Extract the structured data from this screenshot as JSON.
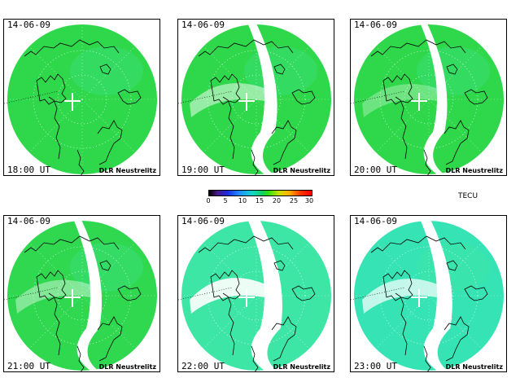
{
  "panels": [
    {
      "date": "14-06-09",
      "time": "18:00 UT",
      "credit": "DLR Neustrelitz",
      "fill": "#2fd84a",
      "hole": 0.0
    },
    {
      "date": "14-06-09",
      "time": "19:00 UT",
      "credit": "DLR Neustrelitz",
      "fill": "#2fd84a",
      "hole": 0.25
    },
    {
      "date": "14-06-09",
      "time": "20:00 UT",
      "credit": "DLR Neustrelitz",
      "fill": "#2fd84a",
      "hole": 0.15
    },
    {
      "date": "14-06-09",
      "time": "21:00 UT",
      "credit": "DLR Neustrelitz",
      "fill": "#30d850",
      "hole": 0.2
    },
    {
      "date": "14-06-09",
      "time": "22:00 UT",
      "credit": "DLR Neustrelitz",
      "fill": "#3ee6a6",
      "hole": 0.45
    },
    {
      "date": "14-06-09",
      "time": "23:00 UT",
      "credit": "DLR Neustrelitz",
      "fill": "#36e3b4",
      "hole": 0.35
    }
  ],
  "colorbar": {
    "ticks": [
      "0",
      "5",
      "10",
      "15",
      "20",
      "25",
      "30"
    ],
    "unit": "TECU"
  },
  "colors": {
    "green": "#2fd84a",
    "teal": "#3ee6a6",
    "coast": "#000000"
  }
}
